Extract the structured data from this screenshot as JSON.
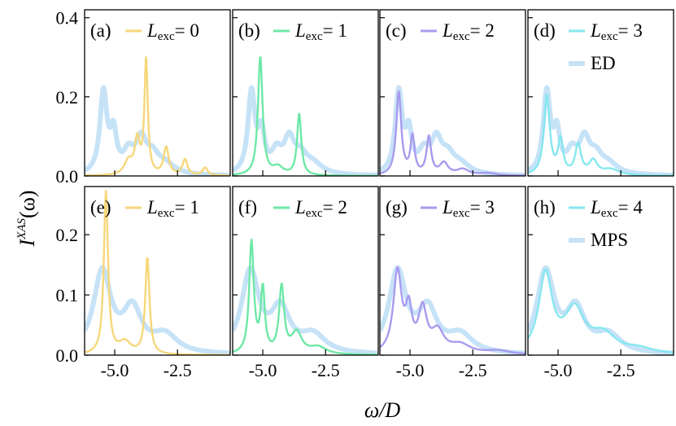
{
  "chart_data": {
    "type": "line",
    "figure": {
      "xlabel": "ω/D",
      "ylabel_main": "I",
      "ylabel_sup": "XAS",
      "ylabel_tail": "(ω)",
      "xlim": [
        -6.2,
        -0.4
      ],
      "xticks": [
        -5.0,
        -2.5
      ],
      "xtick_labels": [
        "-5.0",
        "-2.5"
      ],
      "reference_style": {
        "color": "#c6e2f7"
      }
    },
    "rows": [
      {
        "ylim": [
          0,
          0.42
        ],
        "yticks": [
          0.0,
          0.2,
          0.4
        ],
        "ytick_labels": [
          "0.0",
          "0.2",
          "0.4"
        ],
        "reference_label": "ED",
        "reference": {
          "name": "ED",
          "peaks": [
            [
              -5.45,
              0.205,
              0.17
            ],
            [
              -5.05,
              0.095,
              0.15
            ],
            [
              -4.45,
              0.05,
              0.25
            ],
            [
              -3.95,
              0.08,
              0.25
            ],
            [
              -3.5,
              0.04,
              0.3
            ],
            [
              -3.0,
              0.025,
              0.45
            ]
          ]
        },
        "panels": [
          {
            "id": "(a)",
            "legend_L": "L",
            "legend_sub": "exc",
            "legend_value": "= 0",
            "color": "#f6d77a",
            "peaks": [
              [
                -4.45,
                0.035,
                0.2
              ],
              [
                -4.1,
                0.085,
                0.12
              ],
              [
                -3.75,
                0.29,
                0.08
              ],
              [
                -2.95,
                0.07,
                0.12
              ],
              [
                -2.2,
                0.04,
                0.12
              ],
              [
                -1.4,
                0.02,
                0.12
              ]
            ]
          },
          {
            "id": "(b)",
            "legend_L": "L",
            "legend_sub": "exc",
            "legend_value": "= 1",
            "color": "#6ee8a7",
            "peaks": [
              [
                -5.1,
                0.3,
                0.11
              ],
              [
                -4.4,
                0.02,
                0.25
              ],
              [
                -3.55,
                0.155,
                0.1
              ]
            ]
          },
          {
            "id": "(c)",
            "legend_L": "L",
            "legend_sub": "exc",
            "legend_value": "= 2",
            "color": "#a89bef",
            "peaks": [
              [
                -5.45,
                0.21,
                0.12
              ],
              [
                -4.9,
                0.095,
                0.1
              ],
              [
                -4.25,
                0.095,
                0.11
              ],
              [
                -3.65,
                0.03,
                0.2
              ],
              [
                -2.9,
                0.015,
                0.3
              ],
              [
                -1.9,
                0.006,
                0.4
              ]
            ]
          },
          {
            "id": "(d)",
            "legend_L": "L",
            "legend_sub": "exc",
            "legend_value": "= 3",
            "color": "#86e7ef",
            "peaks": [
              [
                -5.45,
                0.2,
                0.14
              ],
              [
                -4.9,
                0.085,
                0.12
              ],
              [
                -4.2,
                0.075,
                0.14
              ],
              [
                -3.6,
                0.035,
                0.2
              ],
              [
                -2.9,
                0.015,
                0.4
              ]
            ]
          }
        ]
      },
      {
        "ylim": [
          0,
          0.28
        ],
        "yticks": [
          0.0,
          0.1,
          0.2
        ],
        "ytick_labels": [
          "0.0",
          "0.1",
          "0.2"
        ],
        "reference_label": "MPS",
        "reference": {
          "name": "MPS",
          "peaks": [
            [
              -5.5,
              0.135,
              0.42
            ],
            [
              -4.3,
              0.07,
              0.45
            ],
            [
              -3.0,
              0.03,
              0.6
            ]
          ]
        },
        "panels": [
          {
            "id": "(e)",
            "legend_L": "L",
            "legend_sub": "exc",
            "legend_value": "= 1",
            "color": "#f6d77a",
            "peaks": [
              [
                -5.35,
                0.27,
                0.1
              ],
              [
                -4.6,
                0.02,
                0.3
              ],
              [
                -3.7,
                0.16,
                0.1
              ]
            ]
          },
          {
            "id": "(f)",
            "legend_L": "L",
            "legend_sub": "exc",
            "legend_value": "= 2",
            "color": "#6ee8a7",
            "peaks": [
              [
                -5.45,
                0.185,
                0.11
              ],
              [
                -5.0,
                0.105,
                0.1
              ],
              [
                -4.25,
                0.11,
                0.12
              ],
              [
                -3.65,
                0.035,
                0.25
              ],
              [
                -2.8,
                0.012,
                0.4
              ]
            ]
          },
          {
            "id": "(g)",
            "legend_L": "L",
            "legend_sub": "exc",
            "legend_value": "= 3",
            "color": "#a89bef",
            "peaks": [
              [
                -5.5,
                0.135,
                0.2
              ],
              [
                -5.05,
                0.065,
                0.15
              ],
              [
                -4.5,
                0.07,
                0.2
              ],
              [
                -3.9,
                0.035,
                0.3
              ],
              [
                -3.0,
                0.015,
                0.5
              ],
              [
                -1.5,
                0.006,
                0.6
              ]
            ]
          },
          {
            "id": "(h)",
            "legend_L": "L",
            "legend_sub": "exc",
            "legend_value": "= 4",
            "color": "#86e7ef",
            "peaks": [
              [
                -5.5,
                0.13,
                0.32
              ],
              [
                -4.35,
                0.07,
                0.48
              ],
              [
                -3.2,
                0.03,
                0.6
              ],
              [
                -1.8,
                0.008,
                0.7
              ]
            ]
          }
        ]
      }
    ]
  }
}
